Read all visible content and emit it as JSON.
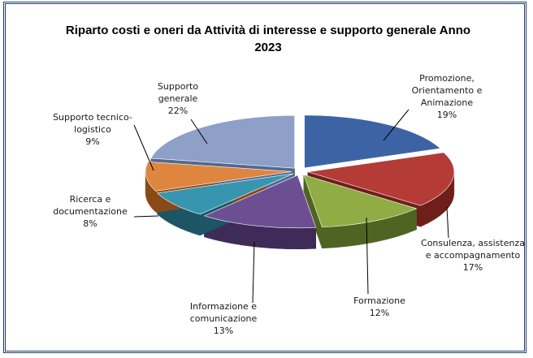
{
  "chart_data": {
    "type": "pie",
    "style": "3d-exploded",
    "title": "Riparto costi e oneri da Attività di interesse e supporto generale Anno 2023",
    "title_lines": [
      "Riparto costi e oneri da Attività di interesse e supporto generale Anno",
      "2023"
    ],
    "slices": [
      {
        "name": "Promozione, Orientamento e Animazione",
        "label_lines": [
          "Promozione,",
          "Orientamento e",
          "Animazione"
        ],
        "percent_label": "19%",
        "value": 19,
        "color": "#3c64a4",
        "dark": "#233f6e"
      },
      {
        "name": "Consulenza, assistenza e accompagnamento",
        "label_lines": [
          "Consulenza, assistenza",
          "e accompagnamento"
        ],
        "percent_label": "17%",
        "value": 17,
        "color": "#b53b36",
        "dark": "#6e1f1c"
      },
      {
        "name": "Formazione",
        "label_lines": [
          "Formazione"
        ],
        "percent_label": "12%",
        "value": 12,
        "color": "#8fad44",
        "dark": "#4f6421"
      },
      {
        "name": "Informazione e comunicazione",
        "label_lines": [
          "Informazione e",
          "comunicazione"
        ],
        "percent_label": "13%",
        "value": 13,
        "color": "#6c4f92",
        "dark": "#3e2b57"
      },
      {
        "name": "Ricerca e documentazione",
        "label_lines": [
          "Ricerca e",
          "documentazione"
        ],
        "percent_label": "8%",
        "value": 8,
        "color": "#3795b0",
        "dark": "#1d5565"
      },
      {
        "name": "Supporto tecnico-logistico",
        "label_lines": [
          "Supporto tecnico-",
          "logistico"
        ],
        "percent_label": "9%",
        "value": 9,
        "color": "#de8640",
        "dark": "#8a4a17"
      },
      {
        "name": "Supporto generale",
        "label_lines": [
          "Supporto",
          "generale"
        ],
        "percent_label": "22%",
        "value": 22,
        "color": "#8ea0c8",
        "dark": "#56688e"
      }
    ],
    "legend": "none"
  }
}
